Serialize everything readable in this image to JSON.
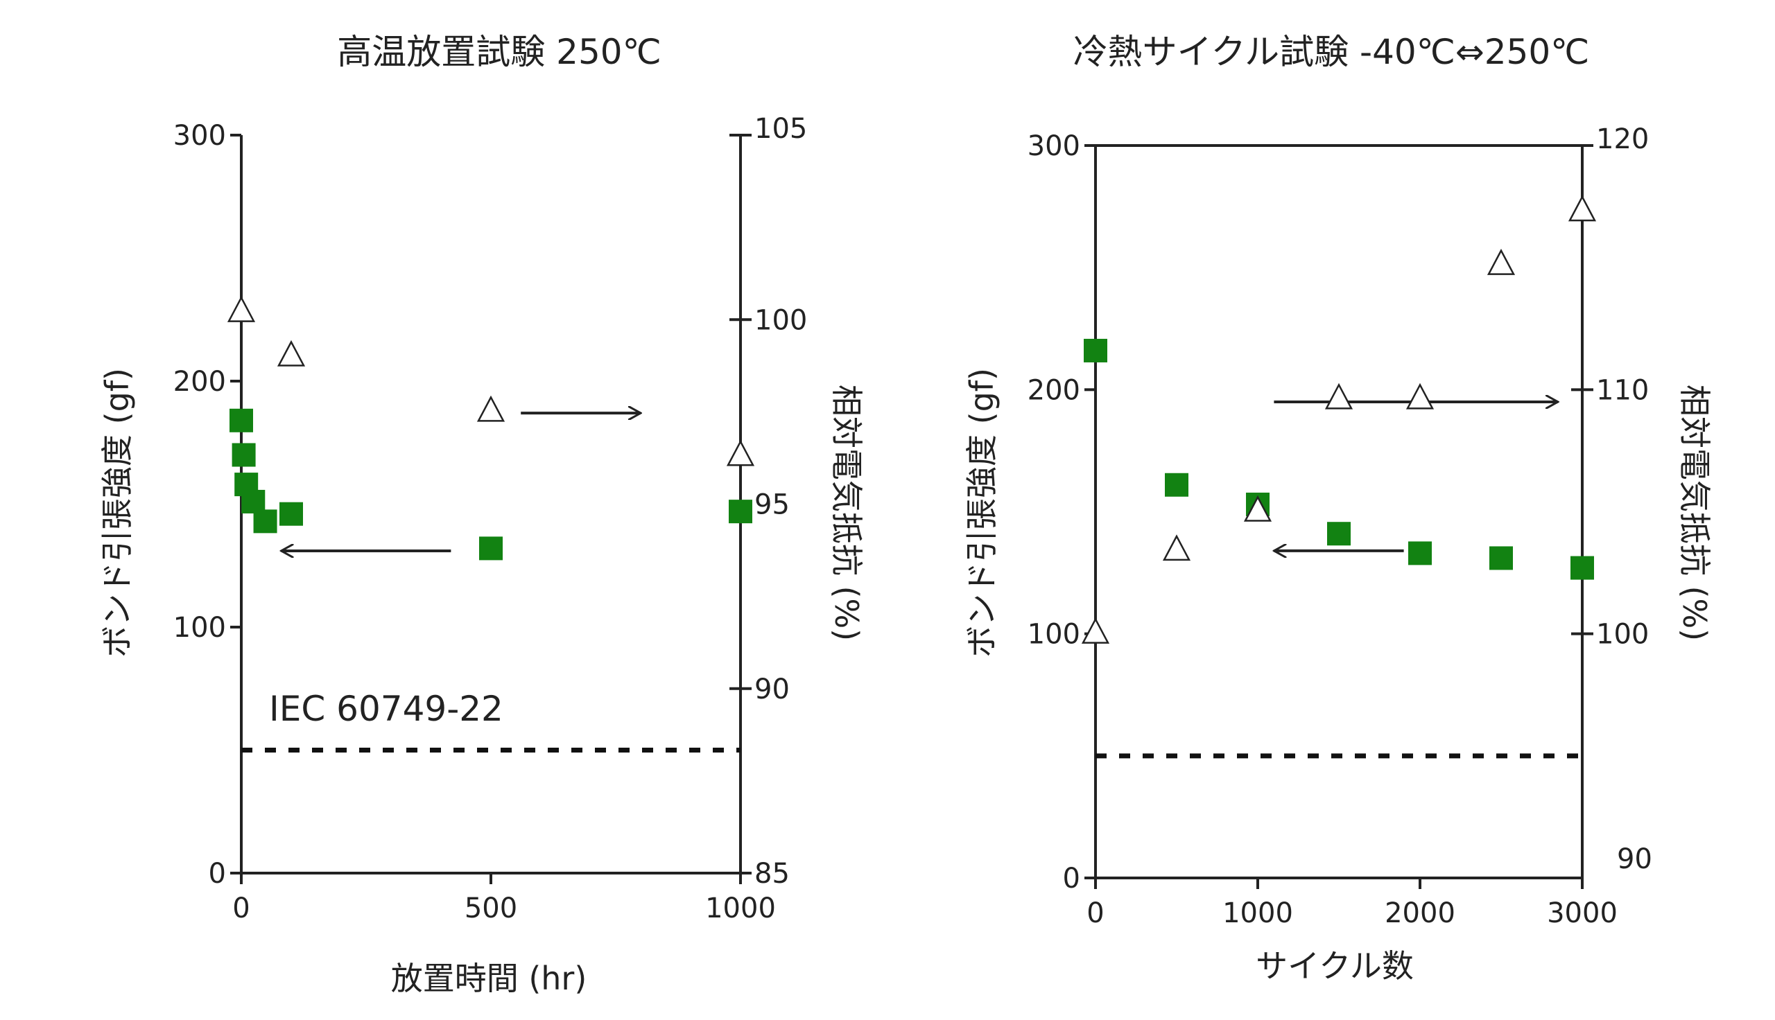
{
  "chart_data": [
    {
      "type": "scatter",
      "title": "高温放置試験 250℃",
      "xlabel": "放置時間 (hr)",
      "ylabel": "ボンド引張強度 (gf)",
      "y2label": "相対電気抵抗 (%)",
      "xlim": [
        0,
        1000
      ],
      "ylim": [
        0,
        300
      ],
      "y2lim": [
        85,
        105
      ],
      "xticks": [
        0,
        500,
        1000
      ],
      "yticks": [
        0,
        100,
        200,
        300
      ],
      "y2ticks": [
        85,
        90,
        95,
        100,
        105
      ],
      "grid": false,
      "legend": "none",
      "series": [
        {
          "marker": "filled-square",
          "color": "#128212",
          "axis": "left",
          "x": [
            0,
            5,
            10,
            24,
            48,
            100,
            500,
            1000
          ],
          "y": [
            184,
            170,
            158,
            151,
            143,
            146,
            132,
            147
          ]
        },
        {
          "marker": "open-triangle",
          "color": "#222222",
          "axis": "right",
          "x": [
            0,
            100,
            500,
            1000
          ],
          "y": [
            100.2,
            99.0,
            97.5,
            96.3
          ]
        }
      ],
      "reference_line": {
        "y": 50,
        "style": "dashed",
        "label": "IEC 60749-22"
      },
      "arrows": [
        {
          "from": [
            420,
            131
          ],
          "to": [
            80,
            131
          ]
        },
        {
          "from": [
            560,
            187
          ],
          "to": [
            800,
            187
          ]
        }
      ]
    },
    {
      "type": "scatter",
      "title": "冷熱サイクル試験 -40℃⇔250℃",
      "xlabel": "サイクル数",
      "ylabel": "ボンド引張強度 (gf)",
      "y2label": "相対電気抵抗 (%)",
      "xlim": [
        0,
        3000
      ],
      "ylim": [
        0,
        300
      ],
      "y2lim": [
        90,
        120
      ],
      "xticks": [
        0,
        1000,
        2000,
        3000
      ],
      "yticks": [
        0,
        100,
        200,
        300
      ],
      "y2ticks": [
        90,
        100,
        110,
        120
      ],
      "grid": false,
      "legend": "none",
      "series": [
        {
          "marker": "filled-square",
          "color": "#128212",
          "axis": "left",
          "x": [
            0,
            500,
            1000,
            1500,
            2000,
            2500,
            3000
          ],
          "y": [
            216,
            161,
            153,
            141,
            133,
            131,
            127
          ]
        },
        {
          "marker": "open-triangle",
          "color": "#222222",
          "axis": "right",
          "x": [
            0,
            500,
            1000,
            1500,
            2000,
            2500,
            3000
          ],
          "y": [
            100.0,
            103.4,
            105.0,
            109.6,
            109.6,
            115.1,
            117.3
          ]
        }
      ],
      "reference_line": {
        "y": 50,
        "style": "dashed"
      },
      "arrows": [
        {
          "from": [
            1900,
            134
          ],
          "to": [
            1100,
            134
          ]
        },
        {
          "from": [
            1100,
            195
          ],
          "to": [
            2850,
            195
          ]
        }
      ]
    }
  ]
}
